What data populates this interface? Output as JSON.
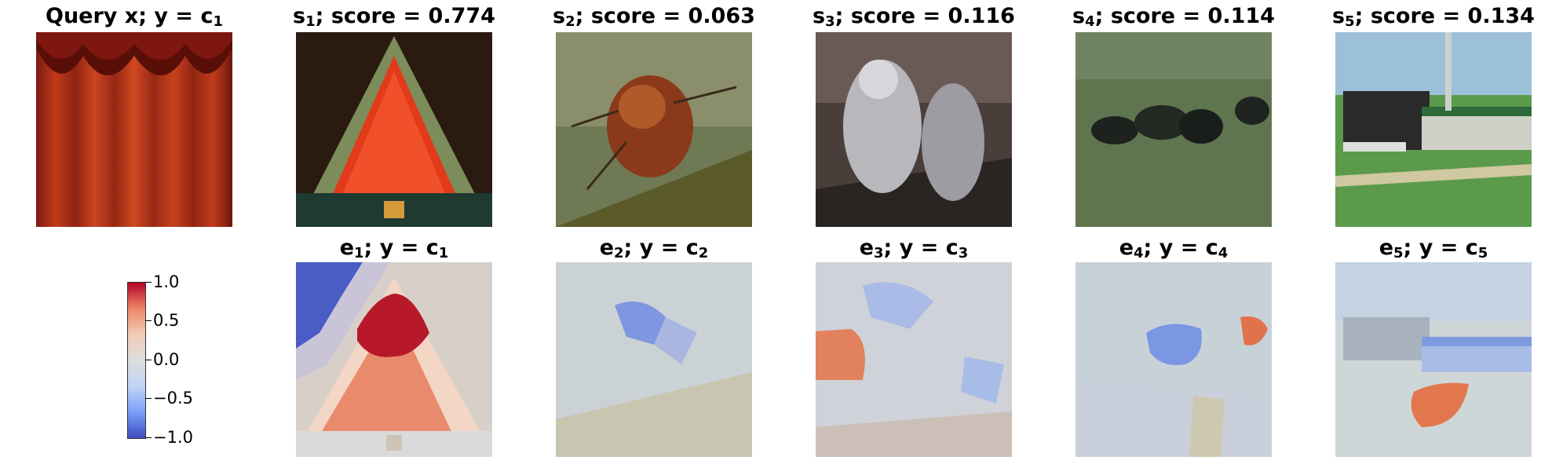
{
  "query": {
    "title_text": "Query x; y = c",
    "title_sub": "1"
  },
  "samples": [
    {
      "name": "s",
      "sub": "1",
      "score_text": "; score = 0.774"
    },
    {
      "name": "s",
      "sub": "2",
      "score_text": "; score = 0.063"
    },
    {
      "name": "s",
      "sub": "3",
      "score_text": "; score = 0.116"
    },
    {
      "name": "s",
      "sub": "4",
      "score_text": "; score = 0.114"
    },
    {
      "name": "s",
      "sub": "5",
      "score_text": "; score = 0.134"
    }
  ],
  "explanations": [
    {
      "name": "e",
      "sub": "1",
      "mid": "; y = c",
      "csub": "1"
    },
    {
      "name": "e",
      "sub": "2",
      "mid": "; y = c",
      "csub": "2"
    },
    {
      "name": "e",
      "sub": "3",
      "mid": "; y = c",
      "csub": "3"
    },
    {
      "name": "e",
      "sub": "4",
      "mid": "; y = c",
      "csub": "4"
    },
    {
      "name": "e",
      "sub": "5",
      "mid": "; y = c",
      "csub": "5"
    }
  ],
  "colorbar": {
    "ticks": [
      "1.0",
      "0.5",
      "0.0",
      "−0.5",
      "−1.0"
    ],
    "colors": [
      "#3b4cc0",
      "#dddddd",
      "#b40426"
    ]
  }
}
